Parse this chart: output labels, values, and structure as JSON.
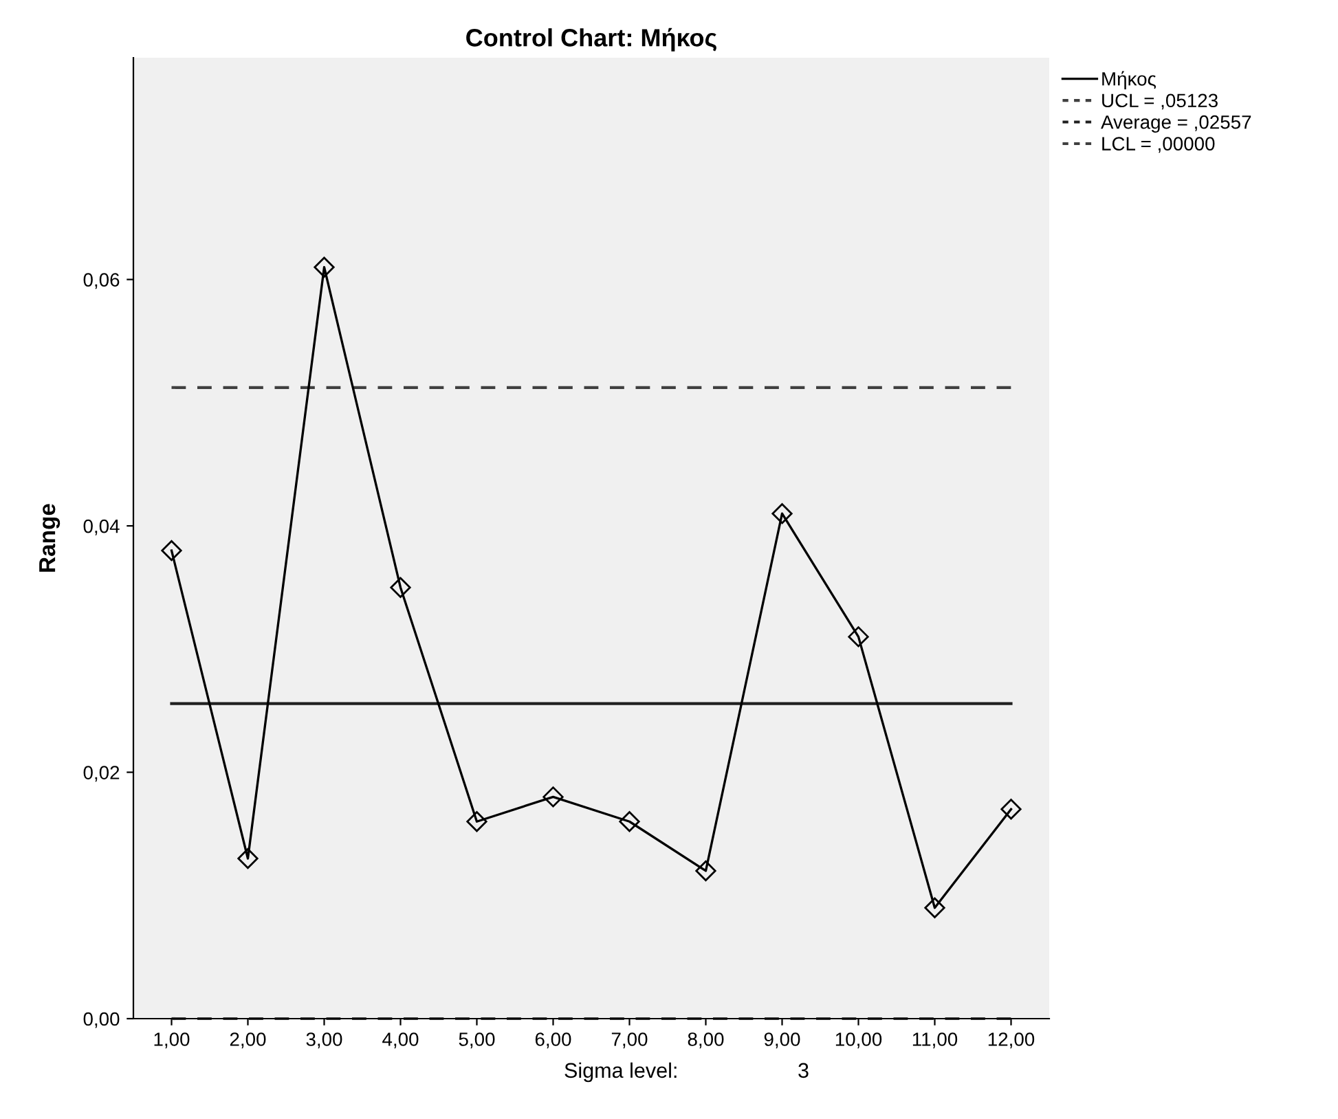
{
  "chart_data": {
    "type": "line",
    "title": "Control Chart: Μήκος",
    "ylabel": "Range",
    "categories": [
      "1,00",
      "2,00",
      "3,00",
      "4,00",
      "5,00",
      "6,00",
      "7,00",
      "8,00",
      "9,00",
      "10,00",
      "11,00",
      "12,00"
    ],
    "series": [
      {
        "name": "Μήκος",
        "color": "#000000",
        "values": [
          0.038,
          0.013,
          0.061,
          0.035,
          0.016,
          0.018,
          0.016,
          0.012,
          0.041,
          0.031,
          0.009,
          0.017
        ]
      }
    ],
    "ref_lines": [
      {
        "axis": "y",
        "value": 0.05123,
        "label": "UCL = ,05123",
        "color": "#404040",
        "line_style": "dashed"
      },
      {
        "axis": "y",
        "value": 0.02557,
        "label": "Average = ,02557",
        "color": "#202020",
        "line_style": "solid"
      },
      {
        "axis": "y",
        "value": 0.0,
        "label": "LCL = ,00000",
        "color": "#404040",
        "line_style": "dashed"
      }
    ],
    "ylim": [
      0,
      0.078
    ],
    "yticks": [
      {
        "value": 0,
        "label": "0,00"
      },
      {
        "value": 0.02,
        "label": "0,02"
      },
      {
        "value": 0.04,
        "label": "0,04"
      },
      {
        "value": 0.06,
        "label": "0,06"
      }
    ],
    "marker": "diamond",
    "line_style": "solid",
    "grid": false,
    "legend": "top right",
    "annotations": [
      "Sigma level:",
      "3"
    ]
  }
}
